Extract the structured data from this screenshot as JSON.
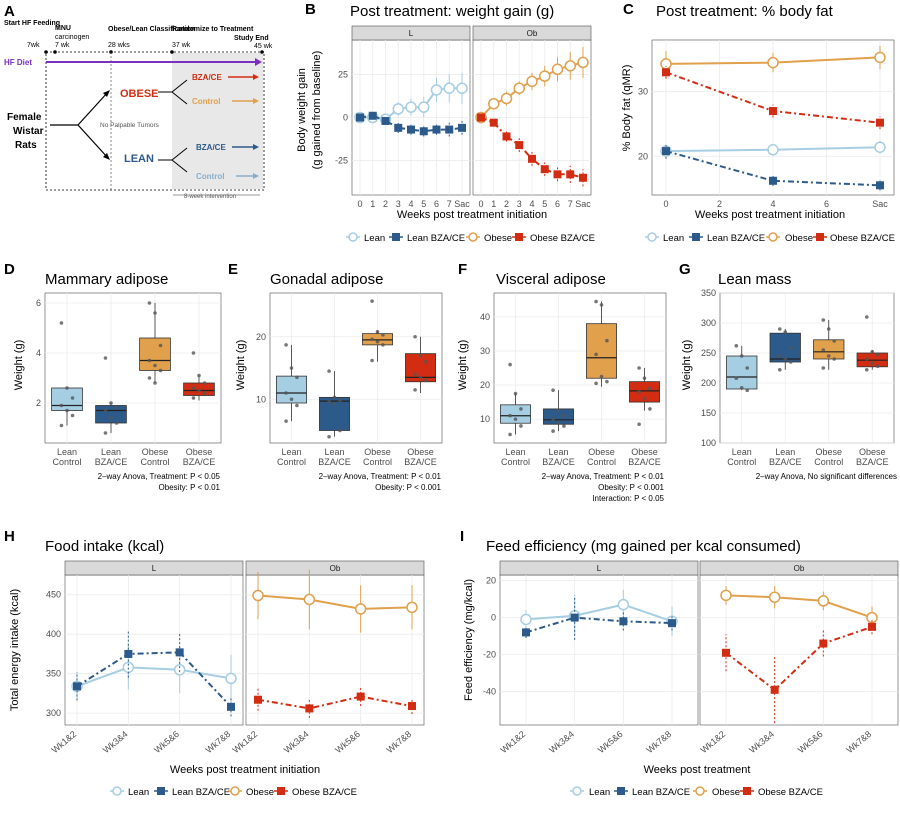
{
  "colors": {
    "lean": "#a6cee3",
    "lean_bza": "#2c5a8a",
    "obese": "#e0a04c",
    "obese_bza": "#d22d12",
    "hf": "#7b2fbe",
    "gray": "#7f7f7f"
  },
  "panelA": {
    "label": "A",
    "steps": [
      "Start HF Feeding",
      "MNU",
      "Obese/Lean Classification",
      "Randomize to Treatment",
      "Study End"
    ],
    "step_subs": [
      "7wk",
      "carcinogen",
      "28 wks",
      "37 wk",
      "45 wk"
    ],
    "step_sub2": "7 wk",
    "hf": "HF Diet",
    "female": "Female",
    "wistar": "Wistar",
    "rats": "Rats",
    "obese": "OBESE",
    "lean": "LEAN",
    "nopalp": "No Palpable Tumors",
    "bza": "BZA/CE",
    "control": "Control",
    "interv": "8-week intervention"
  },
  "legends": {
    "lean": "Lean",
    "lean_bza": "Lean BZA/CE",
    "obese": "Obese",
    "obese_bza": "Obese BZA/CE"
  },
  "panelB": {
    "label": "B",
    "title": "Post treatment: weight gain (g)",
    "ylabel1": "Body weight gain",
    "ylabel2": "(g gained from baseline)",
    "xlabel": "Weeks post treatment initiation",
    "strips": [
      "L",
      "Ob"
    ],
    "ticks_x": [
      "0",
      "1",
      "2",
      "3",
      "4",
      "5",
      "6",
      "7",
      "Sac"
    ],
    "ticks_y": [
      "25",
      "0",
      "-25"
    ]
  },
  "panelC": {
    "label": "C",
    "title": "Post treatment: % body fat",
    "ylabel": "% Body fat (qMR)",
    "xlabel": "Weeks post treatment initiation",
    "ticks_x": [
      "0",
      "2",
      "4",
      "6",
      "Sac"
    ],
    "ticks_y": [
      "30",
      "20"
    ]
  },
  "panelD": {
    "label": "D",
    "title": "Mammary adipose",
    "ylabel": "Weight (g)",
    "ticks_y": [
      "6",
      "4",
      "2"
    ],
    "note1": "2–way Anova, Treatment: P < 0.05",
    "note2": "Obesity: P < 0.01"
  },
  "panelE": {
    "label": "E",
    "title": "Gonadal adipose",
    "ylabel": "Weight (g)",
    "ticks_y": [
      "20",
      "10"
    ],
    "note1": "2–way Anova, Treatment: P < 0.01",
    "note2": "Obesity: P < 0.001"
  },
  "panelF": {
    "label": "F",
    "title": "Visceral adipose",
    "ylabel": "Weight (g)",
    "ticks_y": [
      "40",
      "30",
      "20",
      "10"
    ],
    "note1": "2–way Anova, Treatment: P < 0.01",
    "note2": "Obesity: P < 0.001",
    "note3": "Interaction: P < 0.05"
  },
  "panelG": {
    "label": "G",
    "title": "Lean mass",
    "ylabel": "Weight (g)",
    "ticks_y": [
      "350",
      "300",
      "250",
      "200",
      "150",
      "100"
    ],
    "note1": "2–way Anova, No significant differences"
  },
  "box_groups": [
    [
      "Lean",
      "Control"
    ],
    [
      "Lean",
      "BZA/CE"
    ],
    [
      "Obese",
      "Control"
    ],
    [
      "Obese",
      "BZA/CE"
    ]
  ],
  "panelH": {
    "label": "H",
    "title": "Food intake (kcal)",
    "ylabel": "Total energy intake (kcal)",
    "xlabel": "Weeks post treatment initiation",
    "strips": [
      "L",
      "Ob"
    ],
    "ticks_x": [
      "Wk1&2",
      "Wk3&4",
      "Wk5&6",
      "Wk7&8"
    ],
    "ticks_y": [
      "450",
      "400",
      "350",
      "300"
    ]
  },
  "panelI": {
    "label": "I",
    "title": "Feed efficiency (mg gained per kcal consumed)",
    "ylabel": "Feed efficiency (mg/kcal)",
    "xlabel": "Weeks post treatment",
    "strips": [
      "L",
      "Ob"
    ],
    "ticks_x": [
      "Wk1&2",
      "Wk3&4",
      "Wk5&6",
      "Wk7&8"
    ],
    "ticks_y": [
      "20",
      "0",
      "-20",
      "-40"
    ]
  },
  "chart_data": [
    {
      "id": "B",
      "type": "line",
      "title": "Post treatment: weight gain (g)",
      "xlabel": "Weeks post treatment initiation",
      "ylabel": "Body weight gain (g gained from baseline)",
      "categories": [
        "0",
        "1",
        "2",
        "3",
        "4",
        "5",
        "6",
        "7",
        "Sac"
      ],
      "ylim": [
        -45,
        45
      ],
      "facets": [
        {
          "name": "L",
          "series": [
            {
              "name": "Lean",
              "values": [
                0,
                0,
                -1,
                5,
                6,
                6,
                16,
                17,
                17
              ],
              "err": [
                2,
                2,
                3,
                4,
                5,
                6,
                7,
                8,
                9
              ]
            },
            {
              "name": "Lean BZA/CE",
              "values": [
                0,
                1,
                -2,
                -6,
                -7,
                -8,
                -7,
                -7,
                -6
              ],
              "err": [
                1,
                2,
                2,
                3,
                3,
                3,
                3,
                4,
                4
              ]
            }
          ]
        },
        {
          "name": "Ob",
          "series": [
            {
              "name": "Obese",
              "values": [
                0,
                8,
                11,
                17,
                21,
                24,
                28,
                30,
                32
              ],
              "err": [
                2,
                3,
                4,
                4,
                5,
                6,
                7,
                8,
                9
              ]
            },
            {
              "name": "Obese BZA/CE",
              "values": [
                0,
                -3,
                -11,
                -16,
                -24,
                -30,
                -33,
                -33,
                -35
              ],
              "err": [
                1,
                2,
                3,
                4,
                4,
                4,
                4,
                5,
                5
              ]
            }
          ]
        }
      ]
    },
    {
      "id": "C",
      "type": "line",
      "title": "Post treatment: % body fat",
      "xlabel": "Weeks post treatment initiation",
      "ylabel": "% Body fat (qMR)",
      "x": [
        0,
        4,
        8
      ],
      "xticks": [
        "0",
        "2",
        "4",
        "6",
        "Sac"
      ],
      "ylim": [
        14,
        38
      ],
      "series": [
        {
          "name": "Lean",
          "values": [
            20.8,
            21.0,
            21.4
          ],
          "err": [
            0.8,
            0.8,
            1.0
          ]
        },
        {
          "name": "Lean BZA/CE",
          "values": [
            20.8,
            16.2,
            15.5
          ],
          "err": [
            1.2,
            0.8,
            0.8
          ]
        },
        {
          "name": "Obese",
          "values": [
            34.3,
            34.5,
            35.3
          ],
          "err": [
            2.0,
            1.5,
            1.8
          ]
        },
        {
          "name": "Obese BZA/CE",
          "values": [
            33.0,
            27.0,
            25.2
          ],
          "err": [
            1.0,
            1.0,
            1.0
          ]
        }
      ]
    },
    {
      "id": "D",
      "type": "box",
      "title": "Mammary adipose",
      "ylabel": "Weight (g)",
      "ylim": [
        0.4,
        6.4
      ],
      "boxes": [
        {
          "q1": 1.7,
          "med": 1.9,
          "q3": 2.6,
          "lo": 1.1,
          "hi": 2.6,
          "pts": [
            5.2,
            2.6,
            2.2,
            1.9,
            1.7,
            1.5,
            1.1
          ]
        },
        {
          "q1": 1.2,
          "med": 1.7,
          "q3": 1.9,
          "lo": 0.8,
          "hi": 2.0,
          "pts": [
            3.8,
            2.0,
            1.8,
            1.7,
            1.4,
            1.2,
            0.8
          ]
        },
        {
          "q1": 3.3,
          "med": 3.7,
          "q3": 4.6,
          "lo": 2.8,
          "hi": 6.0,
          "pts": [
            6.0,
            5.6,
            4.3,
            3.7,
            3.5,
            3.3,
            3.0,
            2.8
          ]
        },
        {
          "q1": 2.3,
          "med": 2.5,
          "q3": 2.8,
          "lo": 2.1,
          "hi": 3.1,
          "pts": [
            4.0,
            3.1,
            2.8,
            2.6,
            2.5,
            2.4,
            2.2
          ]
        }
      ]
    },
    {
      "id": "E",
      "type": "box",
      "title": "Gonadal adipose",
      "ylabel": "Weight (g)",
      "ylim": [
        3,
        27
      ],
      "boxes": [
        {
          "q1": 9.4,
          "med": 11,
          "q3": 13.7,
          "lo": 6.5,
          "hi": 18.7,
          "pts": [
            18.7,
            15,
            13.5,
            11,
            10,
            9,
            6.5
          ]
        },
        {
          "q1": 5,
          "med": 9.7,
          "q3": 10.3,
          "lo": 4,
          "hi": 14.5,
          "pts": [
            14.5,
            10.3,
            9.8,
            9.6,
            9.3,
            5,
            4
          ]
        },
        {
          "q1": 18.7,
          "med": 19.5,
          "q3": 20.5,
          "lo": 16,
          "hi": 21,
          "pts": [
            25.7,
            20.8,
            20.3,
            19.6,
            19.2,
            18.7,
            16.2
          ]
        },
        {
          "q1": 12.8,
          "med": 13.5,
          "q3": 17.3,
          "lo": 11,
          "hi": 20,
          "pts": [
            20,
            17,
            16,
            14,
            13.5,
            13,
            11.5
          ]
        }
      ]
    },
    {
      "id": "F",
      "type": "box",
      "title": "Visceral adipose",
      "ylabel": "Weight (g)",
      "ylim": [
        3,
        47
      ],
      "boxes": [
        {
          "q1": 8.8,
          "med": 11,
          "q3": 14.2,
          "lo": 5.5,
          "hi": 17.5,
          "pts": [
            26,
            17.5,
            13,
            11,
            10,
            8,
            5.5
          ]
        },
        {
          "q1": 8.5,
          "med": 9.8,
          "q3": 13,
          "lo": 6.5,
          "hi": 18.5,
          "pts": [
            18.5,
            12.5,
            11,
            10,
            9,
            8,
            6.5
          ]
        },
        {
          "q1": 22,
          "med": 28,
          "q3": 38,
          "lo": 19.5,
          "hi": 44.5,
          "pts": [
            44.5,
            43.5,
            33,
            29,
            22.5,
            21,
            20.5
          ]
        },
        {
          "q1": 15,
          "med": 18.3,
          "q3": 21,
          "lo": 12.5,
          "hi": 25,
          "pts": [
            25,
            22,
            19,
            18,
            16,
            13,
            8.5
          ]
        }
      ]
    },
    {
      "id": "G",
      "type": "box",
      "title": "Lean mass",
      "ylabel": "Weight (g)",
      "ylim": [
        100,
        350
      ],
      "boxes": [
        {
          "q1": 190,
          "med": 210,
          "q3": 245,
          "lo": 188,
          "hi": 262,
          "pts": [
            262,
            245,
            225,
            208,
            192,
            188
          ]
        },
        {
          "q1": 235,
          "med": 240,
          "q3": 283,
          "lo": 222,
          "hi": 290,
          "pts": [
            290,
            285,
            258,
            245,
            240,
            235,
            222
          ]
        },
        {
          "q1": 240,
          "med": 252,
          "q3": 272,
          "lo": 222,
          "hi": 305,
          "pts": [
            305,
            290,
            270,
            255,
            245,
            240,
            225
          ]
        },
        {
          "q1": 227,
          "med": 238,
          "q3": 250,
          "lo": 222,
          "hi": 255,
          "pts": [
            310,
            252,
            248,
            240,
            233,
            228,
            222
          ]
        }
      ]
    },
    {
      "id": "H",
      "type": "line",
      "title": "Food intake (kcal)",
      "xlabel": "Weeks post treatment initiation",
      "ylabel": "Total energy intake (kcal)",
      "categories": [
        "Wk1&2",
        "Wk3&4",
        "Wk5&6",
        "Wk7&8"
      ],
      "ylim": [
        285,
        475
      ],
      "facets": [
        {
          "name": "L",
          "series": [
            {
              "name": "Lean",
              "values": [
                334,
                358,
                355,
                344
              ],
              "err": [
                18,
                28,
                30,
                30
              ]
            },
            {
              "name": "Lean BZA/CE",
              "values": [
                334,
                375,
                377,
                308
              ],
              "err": [
                18,
                30,
                25,
                12
              ]
            }
          ]
        },
        {
          "name": "Ob",
          "series": [
            {
              "name": "Obese",
              "values": [
                449,
                444,
                432,
                434
              ],
              "err": [
                30,
                38,
                30,
                28
              ]
            },
            {
              "name": "Obese BZA/CE",
              "values": [
                317,
                306,
                321,
                309
              ],
              "err": [
                14,
                12,
                12,
                10
              ]
            }
          ]
        }
      ]
    },
    {
      "id": "I",
      "type": "line",
      "title": "Feed efficiency (mg gained per kcal consumed)",
      "xlabel": "Weeks post treatment",
      "ylabel": "Feed efficiency (mg/kcal)",
      "categories": [
        "Wk1&2",
        "Wk3&4",
        "Wk5&6",
        "Wk7&8"
      ],
      "ylim": [
        -58,
        23
      ],
      "facets": [
        {
          "name": "L",
          "series": [
            {
              "name": "Lean",
              "values": [
                -1,
                1,
                7,
                -2
              ],
              "err": [
                5,
                10,
                8,
                8
              ]
            },
            {
              "name": "Lean BZA/CE",
              "values": [
                -8,
                0,
                -2,
                -3
              ],
              "err": [
                3,
                12,
                5,
                4
              ]
            }
          ]
        },
        {
          "name": "Ob",
          "series": [
            {
              "name": "Obese",
              "values": [
                12,
                11,
                9,
                0
              ],
              "err": [
                5,
                6,
                5,
                6
              ]
            },
            {
              "name": "Obese BZA/CE",
              "values": [
                -19,
                -39,
                -14,
                -5
              ],
              "err": [
                10,
                18,
                7,
                4
              ]
            }
          ]
        }
      ]
    }
  ]
}
